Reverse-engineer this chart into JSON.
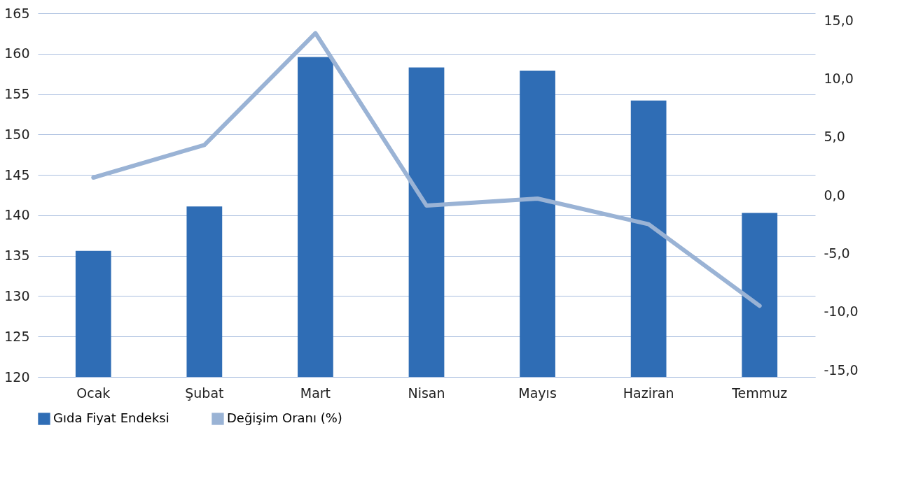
{
  "chart_data": {
    "type": "bar",
    "categories": [
      "Ocak",
      "Şubat",
      "Mart",
      "Nisan",
      "Mayıs",
      "Haziran",
      "Temmuz"
    ],
    "series": [
      {
        "name": "Gıda Fiyat Endeksi",
        "color": "#2f6db5",
        "values": [
          135.6,
          141.1,
          159.6,
          158.3,
          157.9,
          154.2,
          140.3
        ]
      },
      {
        "name": "Değişim Oranı (%)",
        "color": "#9ab3d5",
        "type": "line",
        "axis": "y2",
        "values": [
          1.5,
          4.3,
          13.9,
          -0.9,
          -0.3,
          -2.5,
          -9.5
        ]
      }
    ],
    "ylim": [
      120,
      165
    ],
    "yticks": [
      120,
      125,
      130,
      135,
      140,
      145,
      150,
      155,
      160,
      165
    ],
    "y2lim": [
      -15.6,
      15.6
    ],
    "y2ticks": [
      {
        "value": -15,
        "label": "-15,0"
      },
      {
        "value": -10,
        "label": "-10,0"
      },
      {
        "value": -5,
        "label": "-5,0"
      },
      {
        "value": 0,
        "label": "0,0"
      },
      {
        "value": 5,
        "label": "5,0"
      },
      {
        "value": 10,
        "label": "10,0"
      },
      {
        "value": 15,
        "label": "15,0"
      }
    ],
    "grid": "y",
    "legend": "bottom",
    "marker": "none",
    "line_style": "solid"
  }
}
